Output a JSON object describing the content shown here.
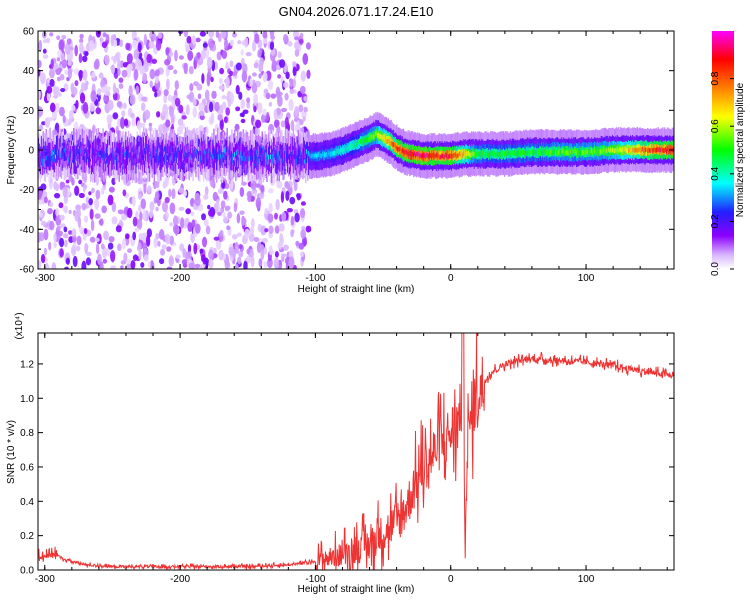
{
  "title": "GN04.2026.071.17.24.E10",
  "chart_data": [
    {
      "type": "heatmap",
      "title": "GN04.2026.071.17.24.E10",
      "xlabel": "Height of straight line (km)",
      "ylabel": "Frequency (Hz)",
      "xlim": [
        -305,
        165
      ],
      "ylim": [
        -60,
        60
      ],
      "xticks": [
        "-300",
        "-200",
        "-100",
        "0",
        "100"
      ],
      "yticks": [
        "-60",
        "-40",
        "-20",
        "0",
        "20",
        "40",
        "60"
      ],
      "colorbar": {
        "label": "Normalized spectral amplitude",
        "range": [
          0,
          1
        ],
        "ticks": [
          "0.0",
          "0.2",
          "0.4",
          "0.6",
          "0.8"
        ],
        "colormap": [
          "#ffffff",
          "#d8b4ff",
          "#8b00ff",
          "#2020ff",
          "#00ffff",
          "#00ff00",
          "#ffff00",
          "#ff7f00",
          "#ff0000",
          "#ff00ff"
        ]
      },
      "ridge_line": {
        "x": [
          -305,
          -280,
          -250,
          -200,
          -150,
          -110,
          -100,
          -90,
          -80,
          -70,
          -60,
          -55,
          -50,
          -45,
          -40,
          -35,
          -30,
          -20,
          -10,
          0,
          10,
          20,
          40,
          60,
          80,
          100,
          120,
          140,
          165
        ],
        "y": [
          -3,
          -2,
          -3,
          -2,
          -3,
          -3,
          -3,
          -2,
          0,
          3,
          6,
          8,
          6,
          4,
          1,
          -1,
          -2,
          -3,
          -3,
          -3,
          -2,
          -2,
          -2,
          -1,
          -1,
          -1,
          0,
          0,
          0
        ]
      },
      "intensity": {
        "x": [
          -305,
          -280,
          -250,
          -200,
          -150,
          -110,
          -100,
          -90,
          -80,
          -70,
          -60,
          -55,
          -50,
          -45,
          -40,
          -35,
          -30,
          -20,
          -10,
          0,
          10,
          20,
          40,
          60,
          80,
          100,
          120,
          140,
          165
        ],
        "values": [
          0.3,
          0.25,
          0.25,
          0.25,
          0.3,
          0.3,
          0.35,
          0.35,
          0.4,
          0.45,
          0.55,
          0.6,
          0.7,
          0.8,
          0.85,
          0.9,
          0.95,
          0.95,
          0.9,
          0.9,
          0.7,
          0.5,
          0.5,
          0.5,
          0.55,
          0.55,
          0.6,
          0.8,
          0.95
        ]
      },
      "noise_region_x": [
        -305,
        -105
      ]
    },
    {
      "type": "line",
      "xlabel": "Height of straight line (km)",
      "ylabel": "SNR (10 * v/v)",
      "multiplier": "(x10⁴)",
      "xlim": [
        -305,
        165
      ],
      "ylim": [
        0,
        1.38
      ],
      "xticks": [
        "-300",
        "-200",
        "-100",
        "0",
        "100"
      ],
      "yticks": [
        "0.0",
        "0.2",
        "0.4",
        "0.6",
        "0.8",
        "1.0",
        "1.2"
      ],
      "color": "#ee3333",
      "series": [
        {
          "x": [
            -305,
            -295,
            -285,
            -270,
            -250,
            -200,
            -150,
            -120,
            -100,
            -90,
            -80,
            -70,
            -60,
            -50,
            -40,
            -35,
            -30,
            -25,
            -20,
            -15,
            -10,
            -5,
            0,
            5,
            8,
            10,
            15,
            20,
            30,
            40,
            50,
            60,
            80,
            100,
            120,
            140,
            165
          ],
          "values": [
            0.08,
            0.1,
            0.06,
            0.03,
            0.02,
            0.02,
            0.02,
            0.03,
            0.05,
            0.07,
            0.09,
            0.12,
            0.15,
            0.22,
            0.28,
            0.33,
            0.42,
            0.52,
            0.6,
            0.65,
            0.72,
            0.75,
            0.8,
            0.85,
            0.95,
            0.4,
            0.9,
            1.05,
            1.15,
            1.2,
            1.22,
            1.23,
            1.22,
            1.21,
            1.19,
            1.16,
            1.13
          ]
        }
      ]
    }
  ]
}
